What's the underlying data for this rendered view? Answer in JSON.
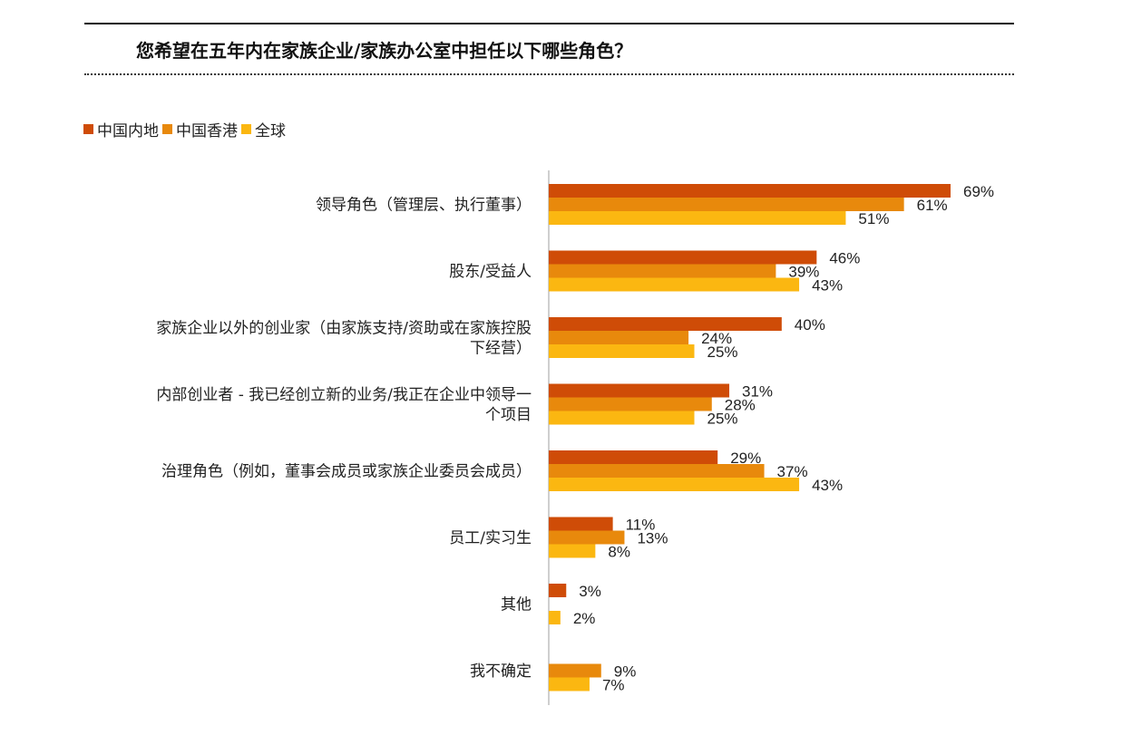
{
  "title": "您希望在五年内在家族企业/家族办公室中担任以下哪些角色？",
  "colors": {
    "mainland": "#cf4c07",
    "hongkong": "#e8890c",
    "global": "#fbb711"
  },
  "chart_data": {
    "type": "bar",
    "orientation": "horizontal",
    "title": "您希望在五年内在家族企业/家族办公室中担任以下哪些角色？",
    "legend_position": "top-left",
    "xlim": [
      0,
      70
    ],
    "grid": false,
    "categories": [
      [
        "领导角色（管理层、执行董事）"
      ],
      [
        "股东/受益人"
      ],
      [
        "家族企业以外的创业家（由家族支持/资助或在家族控股",
        "下经营）"
      ],
      [
        "内部创业者 - 我已经创立新的业务/我正在企业中领导一",
        "个项目"
      ],
      [
        "治理角色（例如，董事会成员或家族企业委员会成员）"
      ],
      [
        "员工/实习生"
      ],
      [
        "其他"
      ],
      [
        "我不确定"
      ]
    ],
    "series": [
      {
        "name": "中国内地",
        "color": "#cf4c07",
        "values": [
          69,
          46,
          40,
          31,
          29,
          11,
          3,
          null
        ]
      },
      {
        "name": "中国香港",
        "color": "#e8890c",
        "values": [
          61,
          39,
          24,
          28,
          37,
          13,
          null,
          9
        ]
      },
      {
        "name": "全球",
        "color": "#fbb711",
        "values": [
          51,
          43,
          25,
          25,
          43,
          8,
          2,
          7
        ]
      }
    ]
  }
}
